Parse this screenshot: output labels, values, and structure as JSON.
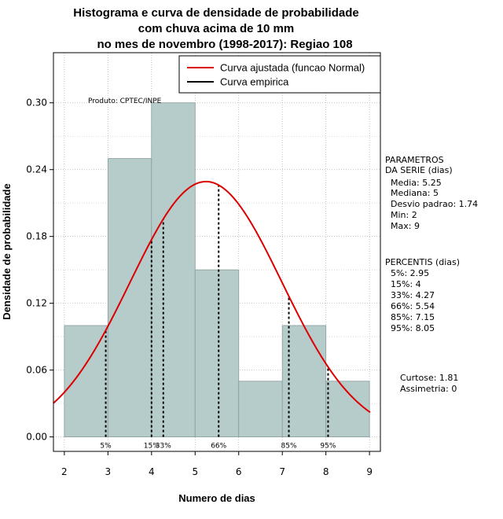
{
  "chart_data": {
    "type": "bar",
    "title_lines": [
      "Histograma e curva de densidade de probabilidade",
      "com chuva acima de 10 mm",
      "no mes de novembro (1998-2017): Regiao 108"
    ],
    "xlabel": "Numero de dias",
    "ylabel": "Densidade de probabilidade",
    "xlim": [
      1.75,
      9.25
    ],
    "ylim": [
      -0.013,
      0.345
    ],
    "x_ticks": [
      2,
      3,
      4,
      5,
      6,
      7,
      8,
      9
    ],
    "y_ticks": [
      0.0,
      0.06,
      0.12,
      0.18,
      0.24,
      0.3
    ],
    "y_tick_labels": [
      "0.00",
      "0.06",
      "0.12",
      "0.18",
      "0.24",
      "0.30"
    ],
    "bins": [
      {
        "start": 2,
        "end": 3,
        "density": 0.1
      },
      {
        "start": 3,
        "end": 4,
        "density": 0.25
      },
      {
        "start": 4,
        "end": 5,
        "density": 0.3
      },
      {
        "start": 5,
        "end": 6,
        "density": 0.15
      },
      {
        "start": 6,
        "end": 7,
        "density": 0.05
      },
      {
        "start": 7,
        "end": 8,
        "density": 0.1
      },
      {
        "start": 8,
        "end": 9,
        "density": 0.05
      }
    ],
    "bar_color": "#b5cccb",
    "normal_curve": {
      "mean": 5.25,
      "sd": 1.74,
      "color": "#dd0000"
    },
    "percentile_lines": [
      {
        "label": "5%",
        "x": 2.95
      },
      {
        "label": "15%",
        "x": 4.0
      },
      {
        "label": "33%",
        "x": 4.27
      },
      {
        "label": "66%",
        "x": 5.54
      },
      {
        "label": "85%",
        "x": 7.15
      },
      {
        "label": "95%",
        "x": 8.05
      }
    ],
    "legend": {
      "position": "top-right",
      "entries": [
        {
          "label": "Curva ajustada (funcao Normal)",
          "color": "#dd0000"
        },
        {
          "label": "Curva empirica",
          "color": "#000000"
        }
      ]
    },
    "grid": true,
    "annotation": "Produto: CPTEC/INPE"
  },
  "side_panel": {
    "param_title": [
      "PARAMETROS",
      "DA SERIE (dias)"
    ],
    "params": [
      "Media: 5.25",
      "Mediana: 5",
      "Desvio padrao: 1.74",
      "Min: 2",
      "Max: 9"
    ],
    "perc_title": "PERCENTIS (dias)",
    "percentiles": [
      "5%: 2.95",
      "15%: 4",
      "33%: 4.27",
      "66%: 5.54",
      "85%: 7.15",
      "95%: 8.05"
    ],
    "shape": [
      "Curtose: 1.81",
      "Assimetria: 0"
    ]
  }
}
